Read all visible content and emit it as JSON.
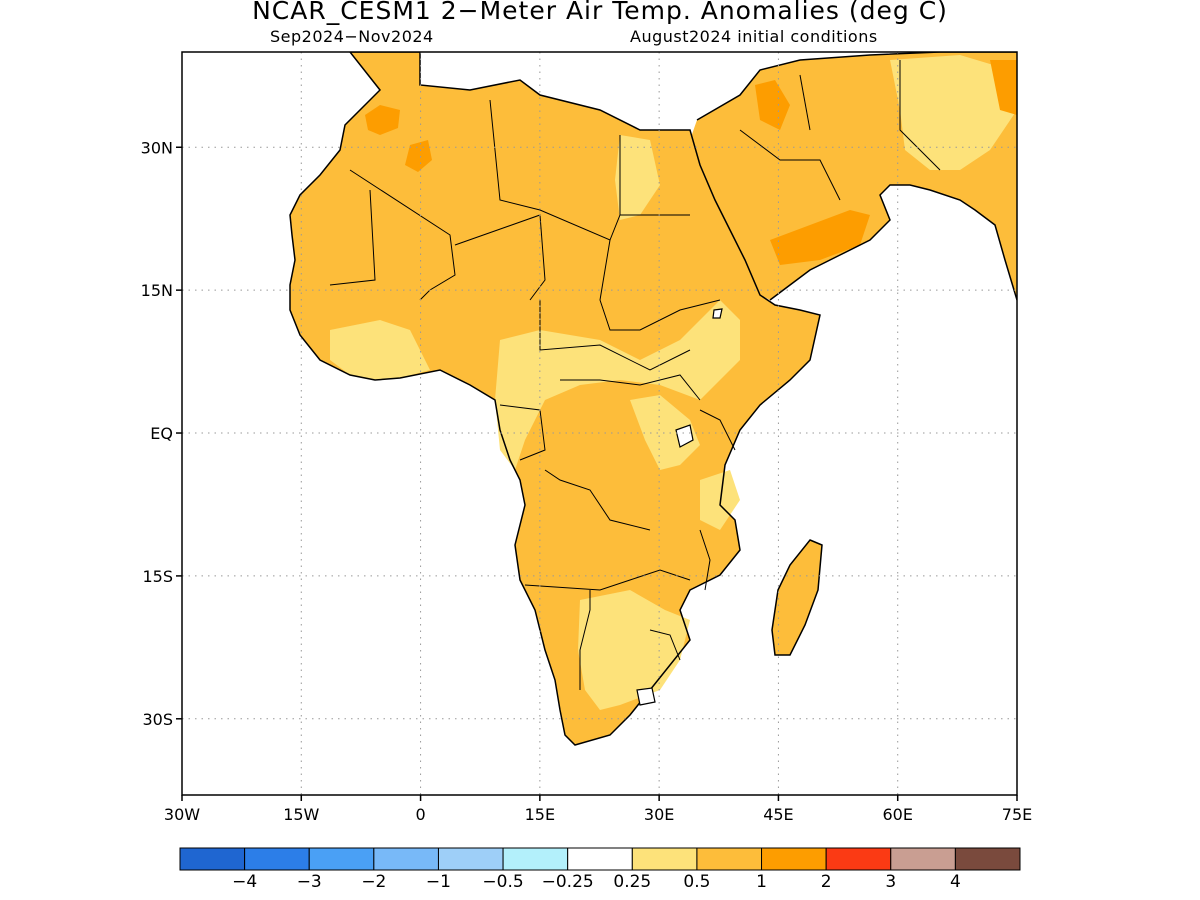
{
  "header": {
    "title": "NCAR_CESM1 2−Meter Air Temp. Anomalies (deg C)",
    "period": "Sep2024−Nov2024",
    "init": "August2024 initial conditions"
  },
  "map": {
    "lat_range": [
      -38,
      40
    ],
    "lon_range": [
      -30,
      75
    ],
    "lat_ticks": [
      {
        "value": 30,
        "label": "30N"
      },
      {
        "value": 15,
        "label": "15N"
      },
      {
        "value": 0,
        "label": "EQ"
      },
      {
        "value": -15,
        "label": "15S"
      },
      {
        "value": -30,
        "label": "30S"
      }
    ],
    "lon_ticks": [
      {
        "value": -30,
        "label": "30W"
      },
      {
        "value": -15,
        "label": "15W"
      },
      {
        "value": 0,
        "label": "0"
      },
      {
        "value": 15,
        "label": "15E"
      },
      {
        "value": 30,
        "label": "30E"
      },
      {
        "value": 45,
        "label": "45E"
      },
      {
        "value": 60,
        "label": "60E"
      },
      {
        "value": 75,
        "label": "75E"
      }
    ],
    "gridlines": "dotted"
  },
  "colorbar": {
    "colors": [
      "#1f66d1",
      "#2c7ee8",
      "#4aa0f5",
      "#78b9f8",
      "#9ecff8",
      "#b3f0fb",
      "#ffffff",
      "#fde27a",
      "#fdbd3a",
      "#fd9d00",
      "#fb3a14",
      "#c99e92",
      "#7a4a3d"
    ],
    "labels": [
      "−4",
      "−3",
      "−2",
      "−1",
      "−0.5",
      "−0.25",
      "0.25",
      "0.5",
      "1",
      "2",
      "3",
      "4"
    ]
  }
}
